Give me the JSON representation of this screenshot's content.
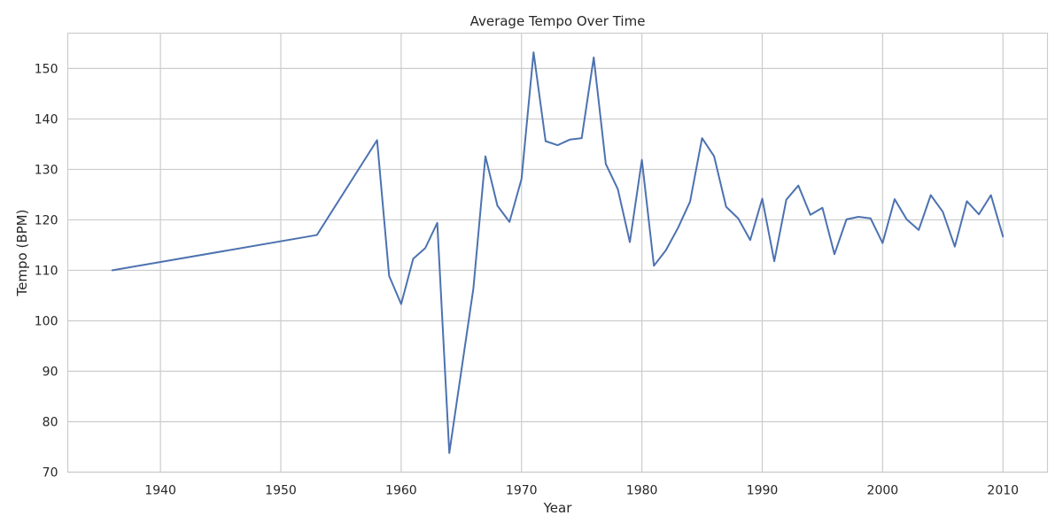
{
  "chart_data": {
    "type": "line",
    "title": "Average Tempo Over Time",
    "xlabel": "Year",
    "ylabel": "Tempo (BPM)",
    "xlim": [
      1932.3,
      1913.7
    ],
    "ylim": [
      70,
      157
    ],
    "xticks": [
      1940,
      1950,
      1960,
      1970,
      1980,
      1990,
      2000,
      2010
    ],
    "yticks": [
      70,
      80,
      90,
      100,
      110,
      120,
      130,
      140,
      150
    ],
    "grid": true,
    "series": [
      {
        "color": "#4c72b0",
        "x": [
          1936,
          1953,
          1958,
          1959,
          1960,
          1961,
          1962,
          1963,
          1964,
          1966,
          1967,
          1968,
          1969,
          1970,
          1971,
          1972,
          1973,
          1974,
          1975,
          1976,
          1977,
          1978,
          1979,
          1980,
          1981,
          1982,
          1983,
          1984,
          1985,
          1986,
          1987,
          1988,
          1989,
          1990,
          1991,
          1992,
          1993,
          1994,
          1995,
          1996,
          1997,
          1998,
          1999,
          2000,
          2001,
          2002,
          2003,
          2004,
          2005,
          2006,
          2007,
          2008,
          2009,
          2010
        ],
        "y": [
          110,
          117,
          135.8,
          108.9,
          103.3,
          112.3,
          114.4,
          119.4,
          73.8,
          106.4,
          132.6,
          122.8,
          119.6,
          128.1,
          153.2,
          135.6,
          134.8,
          135.9,
          136.2,
          152.2,
          131.1,
          126.1,
          115.6,
          131.9,
          110.9,
          114,
          118.4,
          123.6,
          136.2,
          132.6,
          122.6,
          120.3,
          116,
          124.2,
          111.8,
          124,
          126.8,
          121,
          122.4,
          113.2,
          120.1,
          120.6,
          120.3,
          115.4,
          124.1,
          120.1,
          118,
          124.9,
          121.6,
          114.7,
          123.7,
          121.1,
          124.9,
          116.7
        ]
      }
    ]
  }
}
